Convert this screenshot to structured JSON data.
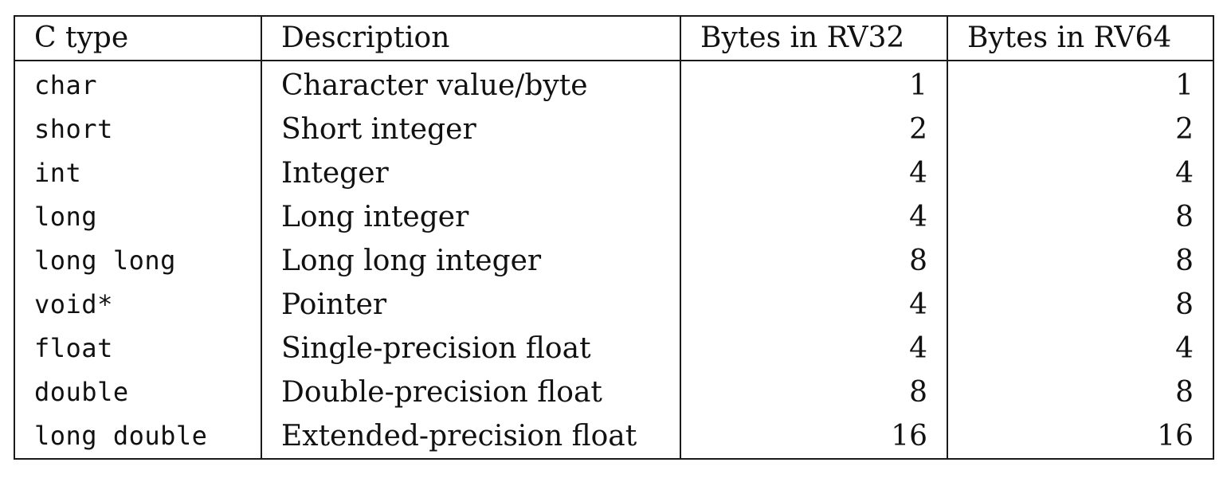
{
  "table": {
    "headers": [
      "C type",
      "Description",
      "Bytes in RV32",
      "Bytes in RV64"
    ],
    "rows": [
      {
        "ctype": "char",
        "description": "Character value/byte",
        "rv32": "1",
        "rv64": "1"
      },
      {
        "ctype": "short",
        "description": "Short integer",
        "rv32": "2",
        "rv64": "2"
      },
      {
        "ctype": "int",
        "description": "Integer",
        "rv32": "4",
        "rv64": "4"
      },
      {
        "ctype": "long",
        "description": "Long integer",
        "rv32": "4",
        "rv64": "8"
      },
      {
        "ctype": "long long",
        "description": "Long long integer",
        "rv32": "8",
        "rv64": "8"
      },
      {
        "ctype": "void*",
        "description": "Pointer",
        "rv32": "4",
        "rv64": "8"
      },
      {
        "ctype": "float",
        "description": "Single-precision float",
        "rv32": "4",
        "rv64": "4"
      },
      {
        "ctype": "double",
        "description": "Double-precision float",
        "rv32": "8",
        "rv64": "8"
      },
      {
        "ctype": "long double",
        "description": "Extended-precision float",
        "rv32": "16",
        "rv64": "16"
      }
    ]
  }
}
